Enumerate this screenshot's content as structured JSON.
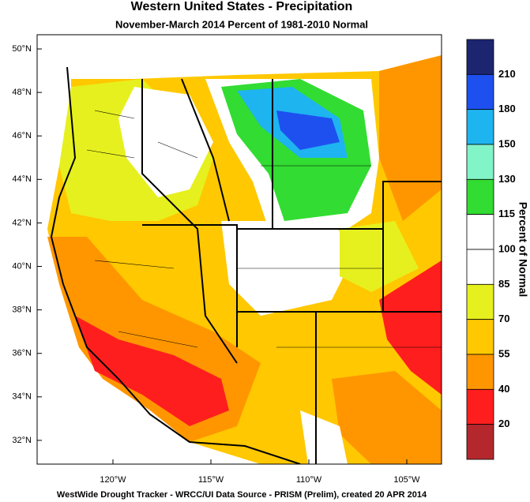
{
  "header": {
    "title": "Western United States - Precipitation",
    "subtitle": "November-March 2014  Percent of 1981-2010 Normal"
  },
  "map": {
    "lat_labels": [
      "50°N",
      "48°N",
      "46°N",
      "44°N",
      "42°N",
      "40°N",
      "38°N",
      "36°N",
      "34°N",
      "32°N"
    ],
    "lon_labels": [
      "120°W",
      "115°W",
      "110°W",
      "105°W"
    ]
  },
  "colorbar": {
    "title": "Percent of Normal",
    "levels": [
      210,
      180,
      150,
      130,
      115,
      100,
      85,
      70,
      55,
      40,
      20
    ],
    "colors": [
      "#1c2670",
      "#1e50f0",
      "#1eb4f0",
      "#82f5c8",
      "#32dc32",
      "#ffffff",
      "#ffffff",
      "#e6f01e",
      "#ffc800",
      "#ff9600",
      "#ff1e1e",
      "#b4282d"
    ]
  },
  "footer": "WestWide Drought Tracker - WRCC/UI  Data Source - PRISM (Prelim), created 20 APR 2014"
}
